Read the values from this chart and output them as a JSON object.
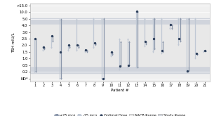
{
  "title": "",
  "ylabel": "TSH mIU/L",
  "xlabel": "Patient #",
  "patients": [
    1,
    2,
    3,
    4,
    5,
    6,
    7,
    8,
    9,
    10,
    11,
    12,
    13,
    14,
    15,
    16,
    17,
    18,
    19,
    20,
    21
  ],
  "bg_color": "#ffffff",
  "plot_bg": "#f0f0f0",
  "nacb_low": 0.45,
  "nacb_high": 4.12,
  "study_low": 0.18,
  "study_high": 5.5,
  "yscale_vals": [
    0.05,
    0.2,
    0.5,
    1.0,
    1.5,
    2.0,
    2.5,
    3.0,
    4.0,
    5.0,
    10.0,
    15.5
  ],
  "yscale_pos": [
    0,
    1,
    2,
    3,
    4,
    5,
    6,
    7,
    8,
    9,
    10,
    11
  ],
  "ytick_labels": [
    "ND*",
    "0.2",
    "0.5",
    "1.0",
    "1.5",
    "2.0",
    "2.5",
    "3.0",
    "4.0",
    "5.0",
    "10.0",
    ">15.0"
  ],
  "optimal_dose": [
    2.5,
    1.85,
    2.7,
    1.5,
    2.0,
    2.0,
    1.65,
    2.2,
    0.05,
    1.5,
    0.45,
    0.5,
    11.0,
    2.3,
    2.5,
    1.6,
    4.1,
    2.5,
    0.25,
    1.4,
    1.6
  ],
  "plus25_top": [
    2.5,
    1.85,
    2.7,
    5.0,
    2.0,
    2.0,
    1.65,
    2.2,
    5.5,
    1.5,
    2.3,
    2.3,
    11.0,
    2.3,
    5.5,
    2.3,
    4.1,
    5.5,
    5.5,
    1.4,
    1.6
  ],
  "plus25_bot": [
    0.2,
    1.7,
    2.3,
    0.05,
    1.8,
    1.8,
    1.5,
    2.0,
    0.05,
    1.3,
    0.45,
    0.5,
    0.4,
    2.1,
    1.7,
    1.5,
    3.5,
    2.3,
    0.25,
    1.3,
    1.55
  ],
  "minus25_top": [
    2.5,
    1.9,
    2.7,
    5.0,
    2.0,
    5.0,
    1.65,
    5.5,
    5.5,
    1.5,
    2.5,
    2.5,
    11.0,
    5.5,
    5.5,
    5.5,
    4.1,
    5.5,
    5.5,
    5.5,
    1.6
  ],
  "minus25_bot": [
    0.2,
    1.6,
    1.8,
    0.05,
    1.6,
    1.6,
    1.5,
    1.8,
    0.05,
    1.2,
    0.3,
    0.4,
    0.4,
    1.9,
    1.5,
    1.4,
    3.5,
    2.0,
    0.2,
    1.0,
    1.5
  ],
  "color_plus25": "#8a96aa",
  "color_minus25": "#c0c8d4",
  "color_optimal": "#2c3e5a",
  "color_nacb": "#e8e8e8",
  "color_study": "#d0d4dc"
}
